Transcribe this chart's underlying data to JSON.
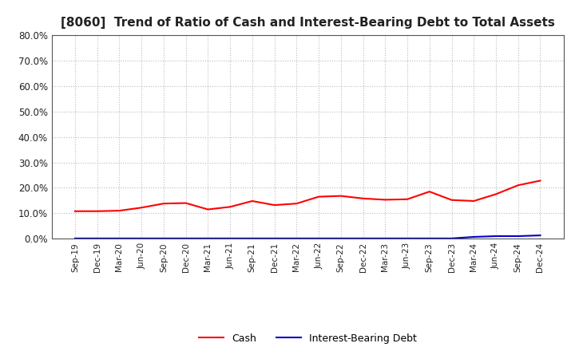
{
  "title": "[8060]  Trend of Ratio of Cash and Interest-Bearing Debt to Total Assets",
  "x_labels": [
    "Sep-19",
    "Dec-19",
    "Mar-20",
    "Jun-20",
    "Sep-20",
    "Dec-20",
    "Mar-21",
    "Jun-21",
    "Sep-21",
    "Dec-21",
    "Mar-22",
    "Jun-22",
    "Sep-22",
    "Dec-22",
    "Mar-23",
    "Jun-23",
    "Sep-23",
    "Dec-23",
    "Mar-24",
    "Jun-24",
    "Sep-24",
    "Dec-24"
  ],
  "cash": [
    0.108,
    0.108,
    0.11,
    0.122,
    0.138,
    0.14,
    0.115,
    0.125,
    0.148,
    0.132,
    0.138,
    0.165,
    0.168,
    0.158,
    0.153,
    0.155,
    0.185,
    0.152,
    0.148,
    0.175,
    0.21,
    0.228
  ],
  "interest_bearing_debt": [
    0.001,
    0.001,
    0.001,
    0.001,
    0.001,
    0.001,
    0.001,
    0.001,
    0.001,
    0.001,
    0.001,
    0.001,
    0.001,
    0.001,
    0.001,
    0.001,
    0.001,
    0.001,
    0.007,
    0.01,
    0.01,
    0.013
  ],
  "cash_color": "#FF0000",
  "debt_color": "#0000CC",
  "ylim": [
    0.0,
    0.8
  ],
  "yticks": [
    0.0,
    0.1,
    0.2,
    0.3,
    0.4,
    0.5,
    0.6,
    0.7,
    0.8
  ],
  "background_color": "#FFFFFF",
  "plot_bg_color": "#FFFFFF",
  "grid_color": "#BBBBBB",
  "title_fontsize": 11,
  "legend_labels": [
    "Cash",
    "Interest-Bearing Debt"
  ],
  "line_width": 1.5
}
